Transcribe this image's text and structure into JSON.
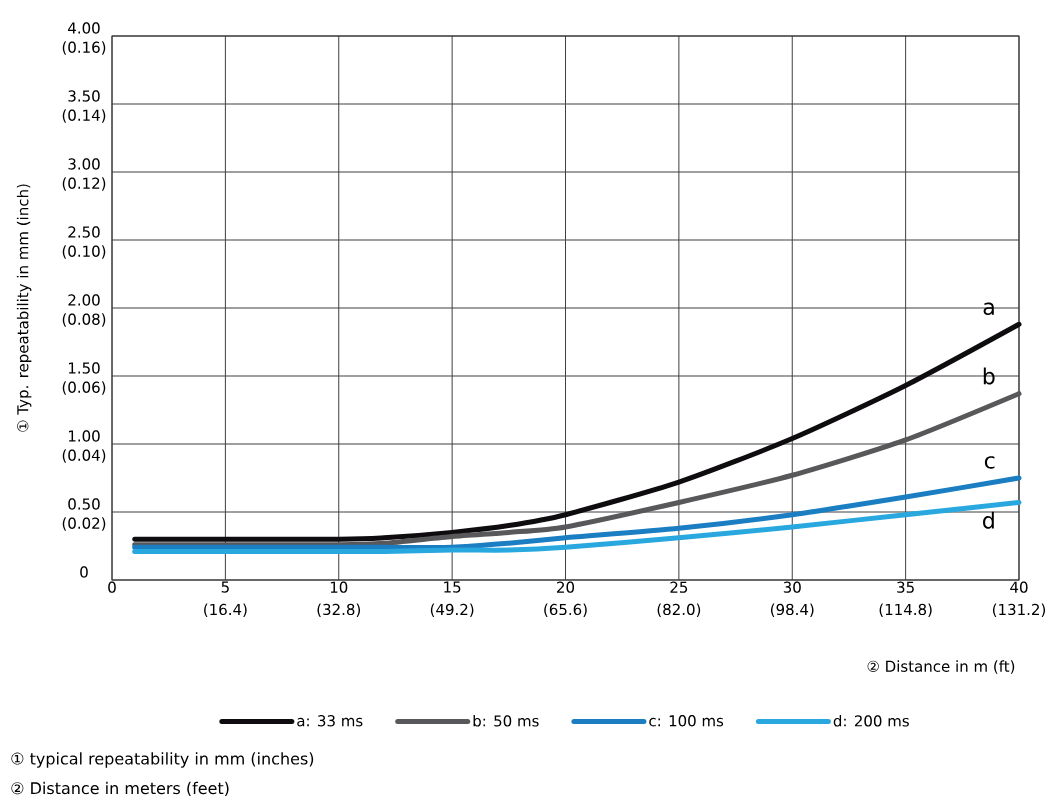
{
  "chart_data": {
    "type": "line",
    "xlabel": "② Distance in m (ft)",
    "ylabel": "① Typ. repeatability in mm (inch)",
    "x": [
      1,
      10,
      12,
      15,
      17.5,
      20,
      25,
      30,
      35,
      40
    ],
    "series": [
      {
        "name": "a: 33 ms",
        "color": "#0f0c10",
        "values": [
          0.3,
          0.3,
          0.31,
          0.35,
          0.4,
          0.48,
          0.72,
          1.04,
          1.43,
          1.88
        ]
      },
      {
        "name": "b: 50 ms",
        "color": "#58585a",
        "values": [
          0.26,
          0.26,
          0.27,
          0.32,
          0.35,
          0.39,
          0.57,
          0.77,
          1.03,
          1.37
        ]
      },
      {
        "name": "c: 100 ms",
        "color": "#1b7ec2",
        "values": [
          0.24,
          0.24,
          0.24,
          0.24,
          0.27,
          0.31,
          0.38,
          0.48,
          0.61,
          0.75
        ]
      },
      {
        "name": "d: 200 ms",
        "color": "#29a8e0",
        "values": [
          0.21,
          0.21,
          0.21,
          0.22,
          0.22,
          0.24,
          0.31,
          0.39,
          0.48,
          0.57
        ]
      }
    ],
    "xlim": [
      0,
      40
    ],
    "ylim": [
      0,
      4
    ],
    "xticks": [
      0,
      5,
      10,
      15,
      20,
      25,
      30,
      35,
      40
    ],
    "yticks": [
      0,
      {
        "value": 0.5,
        "label": "0.50"
      },
      {
        "value": 1,
        "label": "1.00"
      },
      {
        "value": 1.5,
        "label": "1.50"
      },
      {
        "value": 2,
        "label": "2.00"
      },
      {
        "value": 2.5,
        "label": "2.50"
      },
      {
        "value": 3,
        "label": "3.00"
      },
      {
        "value": 3.5,
        "label": "3.50"
      },
      {
        "value": 4,
        "label": "4.00"
      }
    ],
    "x2lim": [
      0,
      131.2
    ],
    "x2ticks": [
      {
        "value": 16.4,
        "label": "(16.4)"
      },
      {
        "value": 32.8,
        "label": "(32.8)"
      },
      {
        "value": 49.2,
        "label": "(49.2)"
      },
      {
        "value": 65.6,
        "label": "(65.6)"
      },
      {
        "value": 82.0,
        "label": "(82.0)"
      },
      {
        "value": 98.4,
        "label": "(98.4)"
      },
      {
        "value": 114.8,
        "label": "(114.8)"
      },
      {
        "value": 131.2,
        "label": "(131.2)"
      }
    ],
    "y2lim": [
      0,
      0.16
    ],
    "y2ticks": [
      {
        "value": 0.02,
        "label": "(0.02)"
      },
      {
        "value": 0.04,
        "label": "(0.04)"
      },
      {
        "value": 0.06,
        "label": "(0.06)"
      },
      {
        "value": 0.08,
        "label": "(0.08)"
      },
      {
        "value": 0.1,
        "label": "(0.10)"
      },
      {
        "value": 0.12,
        "label": "(0.12)"
      },
      {
        "value": 0.14,
        "label": "(0.14)"
      },
      {
        "value": 0.16,
        "label": "(0.16)"
      }
    ],
    "grid": true,
    "legend": "bottom",
    "annotations": [
      "a",
      "b",
      "c",
      "d",
      "① typical repeatability in mm (inches)",
      "② Distance in meters (feet)"
    ]
  }
}
